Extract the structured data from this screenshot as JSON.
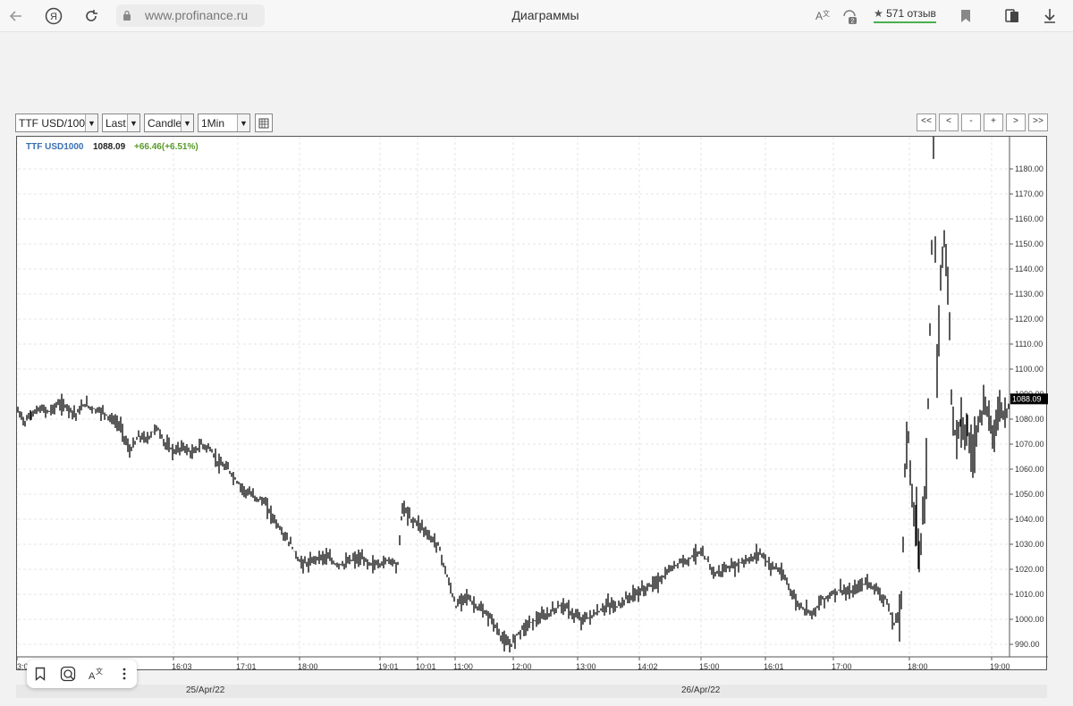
{
  "browser": {
    "url": "www.profinance.ru",
    "page_title": "Диаграммы",
    "rating_text": "571 отзыв",
    "translate_badge": "2"
  },
  "toolbar": {
    "symbol": "TTF USD/100",
    "price_type": "Last",
    "chart_type": "Candle",
    "interval": "1Min",
    "nav": [
      "<<",
      "<",
      "-",
      "+",
      ">",
      ">>"
    ]
  },
  "legend": {
    "symbol": "TTF USD1000",
    "price": "1088.09",
    "change": "+66.46(+6.51%)"
  },
  "colors": {
    "symbol": "#3a6fb0",
    "change": "#5a9a2a",
    "candle": "#000000"
  },
  "chart_data": {
    "type": "candlestick",
    "ylim": [
      985,
      1190
    ],
    "y_ticks": [
      "990.00",
      "1000.00",
      "1010.00",
      "1020.00",
      "1030.00",
      "1040.00",
      "1050.00",
      "1060.00",
      "1070.00",
      "1080.00",
      "1090.00",
      "1100.00",
      "1110.00",
      "1120.00",
      "1130.00",
      "1140.00",
      "1150.00",
      "1160.00",
      "1170.00",
      "1180.00"
    ],
    "last_price_label": "1088.09",
    "x_ticks": [
      "3:0",
      "16:03",
      "17:01",
      "18:00",
      "19:01",
      "10:01",
      "11:00",
      "12:00",
      "13:00",
      "14:02",
      "15:00",
      "16:01",
      "17:00",
      "18:00",
      "19:00"
    ],
    "dates": [
      "25/Apr/22",
      "26/Apr/22"
    ],
    "approx_path": [
      [
        0,
        1083
      ],
      [
        8,
        1079
      ],
      [
        15,
        1082
      ],
      [
        25,
        1084
      ],
      [
        35,
        1083
      ],
      [
        45,
        1086
      ],
      [
        55,
        1085
      ],
      [
        65,
        1082
      ],
      [
        75,
        1086
      ],
      [
        85,
        1084
      ],
      [
        95,
        1083
      ],
      [
        105,
        1080
      ],
      [
        115,
        1077
      ],
      [
        125,
        1067
      ],
      [
        135,
        1073
      ],
      [
        145,
        1072
      ],
      [
        155,
        1077
      ],
      [
        165,
        1070
      ],
      [
        175,
        1067
      ],
      [
        185,
        1069
      ],
      [
        195,
        1066
      ],
      [
        205,
        1070
      ],
      [
        215,
        1068
      ],
      [
        225,
        1062
      ],
      [
        235,
        1060
      ],
      [
        245,
        1055
      ],
      [
        255,
        1051
      ],
      [
        265,
        1049
      ],
      [
        275,
        1047
      ],
      [
        285,
        1041
      ],
      [
        295,
        1035
      ],
      [
        305,
        1030
      ],
      [
        315,
        1023
      ],
      [
        325,
        1022
      ],
      [
        335,
        1025
      ],
      [
        345,
        1025
      ],
      [
        355,
        1022
      ],
      [
        365,
        1022
      ],
      [
        375,
        1024
      ],
      [
        385,
        1024
      ],
      [
        395,
        1022
      ],
      [
        405,
        1022
      ],
      [
        415,
        1024
      ],
      [
        425,
        1022
      ],
      [
        430,
        1045
      ],
      [
        440,
        1040
      ],
      [
        450,
        1038
      ],
      [
        460,
        1033
      ],
      [
        470,
        1030
      ],
      [
        480,
        1017
      ],
      [
        490,
        1005
      ],
      [
        500,
        1010
      ],
      [
        510,
        1006
      ],
      [
        520,
        1003
      ],
      [
        530,
        1000
      ],
      [
        540,
        993
      ],
      [
        550,
        989
      ],
      [
        560,
        995
      ],
      [
        570,
        998
      ],
      [
        580,
        1000
      ],
      [
        590,
        1001
      ],
      [
        600,
        1004
      ],
      [
        610,
        1006
      ],
      [
        620,
        1002
      ],
      [
        630,
        1000
      ],
      [
        640,
        1001
      ],
      [
        650,
        1003
      ],
      [
        660,
        1006
      ],
      [
        670,
        1005
      ],
      [
        680,
        1008
      ],
      [
        690,
        1010
      ],
      [
        700,
        1012
      ],
      [
        710,
        1014
      ],
      [
        720,
        1016
      ],
      [
        730,
        1020
      ],
      [
        740,
        1023
      ],
      [
        750,
        1024
      ],
      [
        760,
        1027
      ],
      [
        770,
        1024
      ],
      [
        780,
        1018
      ],
      [
        790,
        1020
      ],
      [
        800,
        1021
      ],
      [
        810,
        1023
      ],
      [
        820,
        1024
      ],
      [
        830,
        1027
      ],
      [
        840,
        1022
      ],
      [
        850,
        1020
      ],
      [
        860,
        1015
      ],
      [
        870,
        1007
      ],
      [
        880,
        1004
      ],
      [
        890,
        1003
      ],
      [
        900,
        1008
      ],
      [
        910,
        1010
      ],
      [
        920,
        1012
      ],
      [
        930,
        1010
      ],
      [
        940,
        1013
      ],
      [
        950,
        1015
      ],
      [
        960,
        1012
      ],
      [
        970,
        1008
      ],
      [
        980,
        998
      ],
      [
        988,
        1005
      ],
      [
        992,
        1060
      ],
      [
        996,
        1075
      ],
      [
        1000,
        1045
      ],
      [
        1005,
        1040
      ],
      [
        1008,
        1025
      ],
      [
        1012,
        1042
      ],
      [
        1016,
        1060
      ],
      [
        1020,
        1115
      ],
      [
        1024,
        1185
      ],
      [
        1028,
        1100
      ],
      [
        1032,
        1135
      ],
      [
        1036,
        1155
      ],
      [
        1040,
        1135
      ],
      [
        1044,
        1090
      ],
      [
        1048,
        1075
      ],
      [
        1055,
        1080
      ],
      [
        1062,
        1075
      ],
      [
        1068,
        1065
      ],
      [
        1074,
        1080
      ],
      [
        1080,
        1085
      ],
      [
        1086,
        1080
      ],
      [
        1092,
        1075
      ],
      [
        1098,
        1085
      ],
      [
        1104,
        1082
      ],
      [
        1110,
        1088
      ]
    ]
  },
  "pill": {
    "translate_label": "A"
  }
}
